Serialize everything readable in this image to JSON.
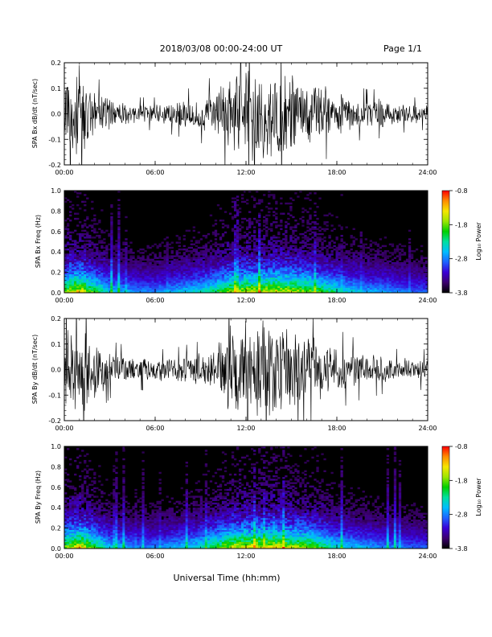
{
  "header": {
    "title": "2018/03/08   00:00-24:00 UT",
    "page": "Page 1/1"
  },
  "xlabel": "Universal Time (hh:mm)",
  "colors": {
    "background": "#ffffff",
    "trace": "#000000",
    "colorbar": [
      "#000000",
      "#3c006e",
      "#3a00d6",
      "#1e62ff",
      "#00bdff",
      "#00e0a0",
      "#00d000",
      "#9ee600",
      "#f6e600",
      "#ff8c00",
      "#ff0000"
    ]
  },
  "chart_data": [
    {
      "type": "line",
      "ylabel": "SPA Bx dB/dt (nT/sec)",
      "x_ticks": [
        "00:00",
        "06:00",
        "12:00",
        "18:00",
        "24:00"
      ],
      "y_ticks": [
        "0.2",
        "0.1",
        "0.0",
        "-0.1",
        "-0.2"
      ],
      "xlim": [
        0,
        24
      ],
      "ylim": [
        -0.2,
        0.2
      ],
      "series": [
        {
          "x": [
            0,
            1,
            2,
            3,
            4,
            5,
            6,
            7,
            8,
            9,
            10,
            11,
            12,
            13,
            14,
            15,
            16,
            17,
            18,
            19,
            20,
            21,
            22,
            23,
            24
          ],
          "amplitude": [
            0.2,
            0.2,
            0.09,
            0.07,
            0.05,
            0.04,
            0.04,
            0.05,
            0.06,
            0.07,
            0.1,
            0.17,
            0.2,
            0.2,
            0.2,
            0.18,
            0.15,
            0.12,
            0.09,
            0.07,
            0.06,
            0.06,
            0.05,
            0.04,
            0.04
          ]
        }
      ]
    },
    {
      "type": "heatmap",
      "ylabel": "SPA Bx Freq (Hz)",
      "x_ticks": [
        "00:00",
        "06:00",
        "12:00",
        "18:00",
        "24:00"
      ],
      "y_ticks": [
        "1.0",
        "0.8",
        "0.6",
        "0.4",
        "0.2",
        "0.0"
      ],
      "xlim": [
        0,
        24
      ],
      "ylim": [
        0,
        1.0
      ],
      "colorbar": {
        "label": "Log₁₀ Power",
        "ticks": [
          "-0.8",
          "-1.8",
          "-2.8",
          "-3.8"
        ],
        "range": [
          -3.8,
          -0.8
        ]
      },
      "activity_by_hour": [
        0.75,
        0.95,
        0.7,
        0.5,
        0.45,
        0.4,
        0.4,
        0.45,
        0.5,
        0.55,
        0.65,
        0.8,
        0.85,
        0.85,
        0.9,
        0.85,
        0.8,
        0.7,
        0.6,
        0.5,
        0.45,
        0.45,
        0.4,
        0.35,
        0.35
      ]
    },
    {
      "type": "line",
      "ylabel": "SPA By dB/dt (nT/sec)",
      "x_ticks": [
        "00:00",
        "06:00",
        "12:00",
        "18:00",
        "24:00"
      ],
      "y_ticks": [
        "0.2",
        "0.1",
        "0.0",
        "-0.1",
        "-0.2"
      ],
      "xlim": [
        0,
        24
      ],
      "ylim": [
        -0.2,
        0.2
      ],
      "series": [
        {
          "x": [
            0,
            1,
            2,
            3,
            4,
            5,
            6,
            7,
            8,
            9,
            10,
            11,
            12,
            13,
            14,
            15,
            16,
            17,
            18,
            19,
            20,
            21,
            22,
            23,
            24
          ],
          "amplitude": [
            0.2,
            0.2,
            0.12,
            0.07,
            0.06,
            0.05,
            0.05,
            0.05,
            0.06,
            0.07,
            0.1,
            0.2,
            0.2,
            0.2,
            0.2,
            0.17,
            0.14,
            0.12,
            0.1,
            0.08,
            0.07,
            0.06,
            0.05,
            0.05,
            0.05
          ]
        }
      ]
    },
    {
      "type": "heatmap",
      "ylabel": "SPA By Freq (Hz)",
      "x_ticks": [
        "00:00",
        "06:00",
        "12:00",
        "18:00",
        "24:00"
      ],
      "y_ticks": [
        "1.0",
        "0.8",
        "0.6",
        "0.4",
        "0.2",
        "0.0"
      ],
      "xlim": [
        0,
        24
      ],
      "ylim": [
        0,
        1.0
      ],
      "colorbar": {
        "label": "Log₁₀ Power",
        "ticks": [
          "-0.8",
          "-1.8",
          "-2.8",
          "-3.8"
        ],
        "range": [
          -3.8,
          -0.8
        ]
      },
      "activity_by_hour": [
        0.75,
        0.95,
        0.7,
        0.5,
        0.45,
        0.4,
        0.4,
        0.45,
        0.5,
        0.55,
        0.7,
        0.85,
        0.9,
        0.9,
        0.9,
        0.85,
        0.8,
        0.7,
        0.55,
        0.5,
        0.45,
        0.4,
        0.4,
        0.35,
        0.35
      ]
    }
  ]
}
